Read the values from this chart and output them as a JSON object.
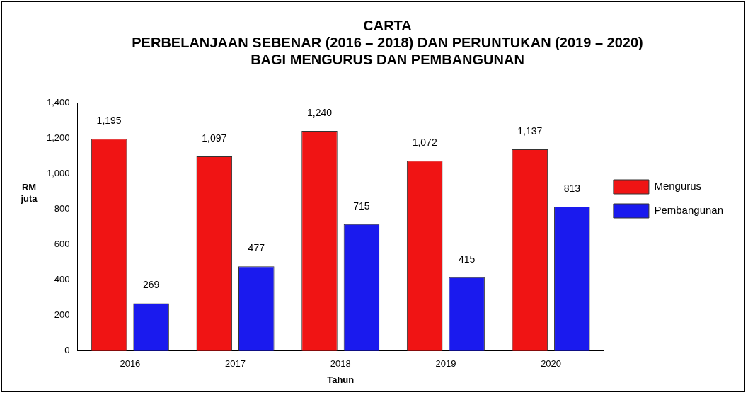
{
  "chart_data": {
    "type": "bar",
    "title": "CARTA\nPERBELANJAAN SEBENAR (2016 – 2018) DAN PERUNTUKAN (2019 – 2020)\nBAGI MENGURUS DAN PEMBANGUNAN",
    "xlabel": "Tahun",
    "ylabel": "RM\njuta",
    "categories": [
      "2016",
      "2017",
      "2018",
      "2019",
      "2020"
    ],
    "series": [
      {
        "name": "Mengurus",
        "color": "#f01414",
        "values": [
          1195,
          1097,
          1240,
          1072,
          1137
        ],
        "value_labels": [
          "1,195",
          "1,097",
          "1,240",
          "1,072",
          "1,137"
        ]
      },
      {
        "name": "Pembangunan",
        "color": "#1a1aee",
        "values": [
          269,
          477,
          715,
          415,
          813
        ],
        "value_labels": [
          "269",
          "477",
          "715",
          "415",
          "813"
        ]
      }
    ],
    "ylim": [
      0,
      1400
    ],
    "yticks": [
      0,
      200,
      400,
      600,
      800,
      {
        "value": 1000,
        "label": "1,000"
      },
      {
        "value": 1200,
        "label": "1,200"
      },
      {
        "value": 1400,
        "label": "1,400"
      }
    ],
    "legend": "right",
    "grid": false
  }
}
